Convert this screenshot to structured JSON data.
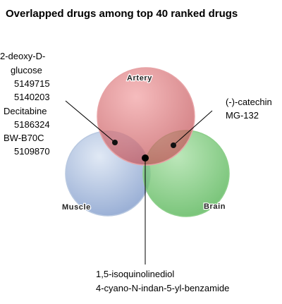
{
  "title": "Overlapped drugs among top 40 ranked drugs",
  "sets": [
    {
      "id": "artery",
      "label": "Artery",
      "color": "#c9575c"
    },
    {
      "id": "muscle",
      "label": "Muscle",
      "color": "#8aa6d2"
    },
    {
      "id": "brain",
      "label": "Brain",
      "color": "#5cba5c"
    }
  ],
  "overlaps": {
    "artery_muscle": [
      "2-deoxy-D-",
      "glucose",
      "5149715",
      "5140203",
      "Decitabine",
      "5186324",
      "BW-B70C",
      "5109870"
    ],
    "artery_brain": [
      "(-)-catechin",
      "MG-132"
    ],
    "all_three": [
      "1,5-isoquinolinediol",
      "4-cyano-N-indan-5-yl-benzamide"
    ]
  }
}
